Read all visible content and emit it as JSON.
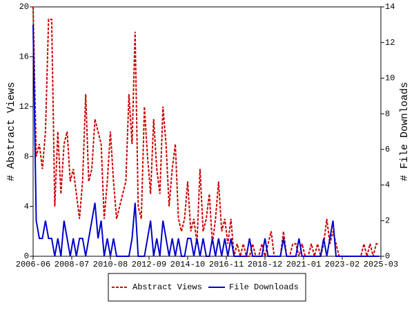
{
  "chart_data": {
    "type": "line",
    "y_label": "# Abstract Views",
    "y2_label": "# File Downloads",
    "x": [
      "2006-06",
      "2006-08",
      "2006-10",
      "2006-12",
      "2007-02",
      "2007-04",
      "2007-06",
      "2007-08",
      "2007-10",
      "2007-12",
      "2008-02",
      "2008-04",
      "2008-06",
      "2008-08",
      "2008-10",
      "2008-12",
      "2009-02",
      "2009-04",
      "2009-06",
      "2009-08",
      "2009-10",
      "2009-12",
      "2010-02",
      "2010-04",
      "2010-06",
      "2010-08",
      "2010-10",
      "2010-12",
      "2011-02",
      "2011-04",
      "2011-06",
      "2011-08",
      "2011-10",
      "2011-12",
      "2012-02",
      "2012-04",
      "2012-06",
      "2012-08",
      "2012-10",
      "2012-12",
      "2013-02",
      "2013-04",
      "2013-06",
      "2013-08",
      "2013-10",
      "2013-12",
      "2014-02",
      "2014-04",
      "2014-06",
      "2014-08",
      "2014-10",
      "2014-12",
      "2015-02",
      "2015-04",
      "2015-06",
      "2015-08",
      "2015-10",
      "2015-12",
      "2016-02",
      "2016-04",
      "2016-06",
      "2016-08",
      "2016-10",
      "2016-12",
      "2017-02",
      "2017-04",
      "2017-06",
      "2017-08",
      "2017-10",
      "2017-12",
      "2018-02",
      "2018-04",
      "2018-06",
      "2018-08",
      "2018-10",
      "2018-12",
      "2019-02",
      "2019-04",
      "2019-06",
      "2019-08",
      "2019-10",
      "2019-12",
      "2020-02",
      "2020-04",
      "2020-06",
      "2020-08",
      "2020-10",
      "2020-12",
      "2021-02",
      "2021-04",
      "2021-06",
      "2021-08",
      "2021-10",
      "2021-12",
      "2022-02",
      "2022-04",
      "2022-06",
      "2022-08",
      "2022-10",
      "2022-12",
      "2023-02",
      "2023-04",
      "2023-06",
      "2023-08",
      "2023-10",
      "2023-12",
      "2024-02",
      "2024-04",
      "2024-06",
      "2024-08",
      "2024-10",
      "2024-12",
      "2025-02"
    ],
    "series": [
      {
        "name": "Abstract Views",
        "color": "#cc0000",
        "dash": true,
        "values": [
          20,
          8,
          9,
          7,
          10,
          19,
          19,
          4,
          10,
          5,
          9,
          10,
          6,
          7,
          5,
          3,
          6,
          13,
          6,
          7,
          11,
          10,
          9,
          3,
          6,
          10,
          6,
          3,
          4,
          5,
          6,
          13,
          9,
          18,
          4,
          3,
          12,
          8,
          5,
          11,
          7,
          5,
          12,
          9,
          4,
          7,
          9,
          3,
          2,
          3,
          6,
          2,
          3,
          1,
          7,
          2,
          3,
          5,
          1,
          3,
          6,
          2,
          3,
          1,
          3,
          0,
          1,
          0,
          1,
          0,
          0,
          1,
          0,
          0,
          1,
          0,
          1,
          2,
          0,
          0,
          0,
          2,
          0,
          0,
          1,
          1,
          0,
          1,
          0,
          0,
          1,
          0,
          1,
          0,
          1,
          3,
          1,
          2,
          1,
          0,
          0,
          0,
          0,
          0,
          0,
          0,
          0,
          1,
          0,
          1,
          0,
          1,
          1
        ]
      },
      {
        "name": "File Downloads",
        "color": "#0000cc",
        "axis": "y2",
        "values": [
          13,
          2,
          1,
          1,
          2,
          1,
          1,
          0,
          1,
          0,
          2,
          1,
          0,
          1,
          0,
          1,
          1,
          0,
          1,
          2,
          3,
          1,
          2,
          0,
          1,
          0,
          1,
          0,
          0,
          0,
          0,
          0,
          1,
          3,
          0,
          0,
          0,
          1,
          2,
          0,
          1,
          0,
          2,
          1,
          0,
          1,
          0,
          1,
          0,
          0,
          1,
          1,
          0,
          1,
          0,
          1,
          0,
          0,
          1,
          0,
          1,
          0,
          1,
          0,
          1,
          0,
          0,
          0,
          0,
          0,
          1,
          0,
          0,
          0,
          0,
          1,
          0,
          0,
          0,
          0,
          0,
          1,
          0,
          0,
          0,
          0,
          1,
          0,
          0,
          0,
          0,
          0,
          0,
          0,
          1,
          0,
          1,
          2,
          0,
          0,
          0,
          0,
          0,
          0,
          0,
          0,
          0,
          0,
          0,
          0,
          0,
          0,
          0
        ]
      }
    ],
    "xlim": [
      "2006-06",
      "2025-03"
    ],
    "xticks": [
      "2006-06",
      "2008-07",
      "2010-08",
      "2012-09",
      "2014-10",
      "2016-11",
      "2018-12",
      "2021-01",
      "2023-02",
      "2025-03"
    ],
    "ylim": [
      0,
      20
    ],
    "yticks": [
      0,
      4,
      8,
      12,
      16,
      20
    ],
    "y2lim": [
      0,
      14
    ],
    "y2ticks": [
      0,
      2,
      4,
      6,
      8,
      10,
      12,
      14
    ],
    "legend": "bottom"
  }
}
